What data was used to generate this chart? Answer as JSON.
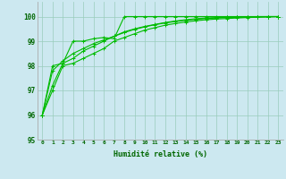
{
  "xlabel": "Humidité relative (%)",
  "bg_color": "#cce8f0",
  "grid_color": "#99ccbb",
  "line_color": "#00bb00",
  "xlim": [
    -0.5,
    23.5
  ],
  "ylim": [
    95,
    100.6
  ],
  "yticks": [
    95,
    96,
    97,
    98,
    99,
    100
  ],
  "xticks": [
    0,
    1,
    2,
    3,
    4,
    5,
    6,
    7,
    8,
    9,
    10,
    11,
    12,
    13,
    14,
    15,
    16,
    17,
    18,
    19,
    20,
    21,
    22,
    23
  ],
  "series": [
    [
      96.0,
      97.0,
      98.0,
      98.1,
      98.3,
      98.5,
      98.7,
      99.0,
      99.15,
      99.3,
      99.45,
      99.55,
      99.65,
      99.72,
      99.78,
      99.83,
      99.87,
      99.9,
      99.92,
      99.94,
      99.96,
      99.97,
      99.98,
      100.0
    ],
    [
      96.0,
      98.0,
      98.1,
      99.0,
      99.0,
      99.1,
      99.15,
      99.1,
      100.0,
      100.0,
      100.0,
      100.0,
      100.0,
      100.0,
      100.0,
      100.0,
      100.0,
      100.0,
      100.0,
      100.0,
      100.0,
      100.0,
      100.0,
      100.0
    ],
    [
      96.0,
      97.2,
      98.1,
      98.3,
      98.6,
      98.8,
      99.0,
      99.2,
      99.35,
      99.48,
      99.58,
      99.67,
      99.74,
      99.8,
      99.85,
      99.89,
      99.92,
      99.94,
      99.96,
      99.97,
      99.98,
      99.99,
      100.0,
      100.0
    ],
    [
      96.0,
      97.8,
      98.2,
      98.5,
      98.7,
      98.9,
      99.05,
      99.2,
      99.38,
      99.5,
      99.6,
      99.68,
      99.76,
      99.82,
      99.87,
      99.91,
      99.94,
      99.96,
      99.97,
      99.98,
      99.99,
      100.0,
      100.0,
      100.0
    ]
  ]
}
